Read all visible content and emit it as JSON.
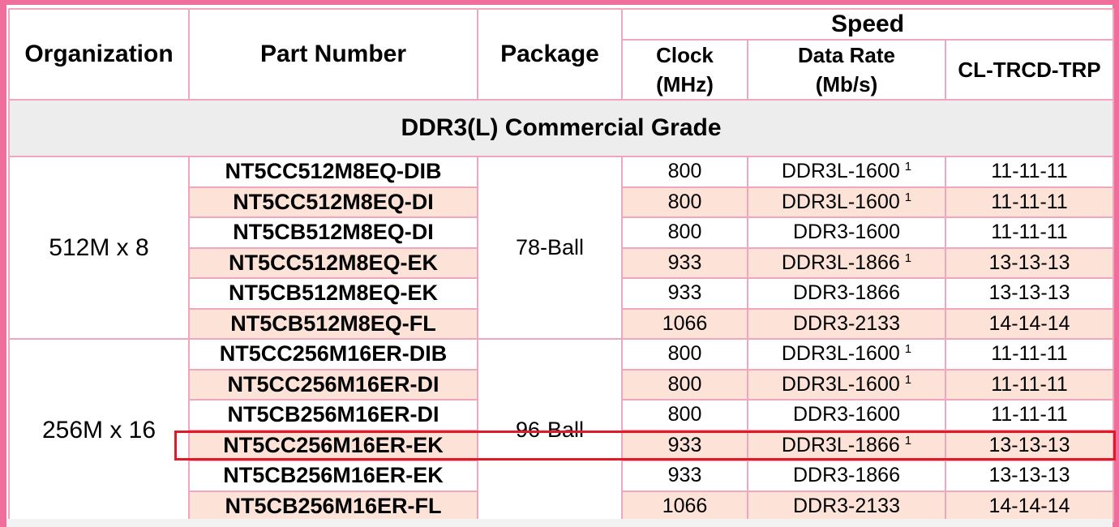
{
  "header": {
    "organization": "Organization",
    "part_number": "Part Number",
    "package": "Package",
    "speed": "Speed",
    "clock_line1": "Clock",
    "clock_line2": "(MHz)",
    "data_rate_line1": "Data Rate",
    "data_rate_line2": "(Mb/s)",
    "timing": "CL-TRCD-TRP"
  },
  "grade_title": "DDR3(L) Commercial Grade",
  "groups": [
    {
      "organization": "512M x 8",
      "package": "78-Ball",
      "rows": [
        {
          "part": "NT5CC512M8EQ-DIB",
          "clock": "800",
          "rate": "DDR3L-1600",
          "note": "1",
          "timing": "11-11-11"
        },
        {
          "part": "NT5CC512M8EQ-DI",
          "clock": "800",
          "rate": "DDR3L-1600",
          "note": "1",
          "timing": "11-11-11"
        },
        {
          "part": "NT5CB512M8EQ-DI",
          "clock": "800",
          "rate": "DDR3-1600",
          "note": "",
          "timing": "11-11-11"
        },
        {
          "part": "NT5CC512M8EQ-EK",
          "clock": "933",
          "rate": "DDR3L-1866",
          "note": "1",
          "timing": "13-13-13"
        },
        {
          "part": "NT5CB512M8EQ-EK",
          "clock": "933",
          "rate": "DDR3-1866",
          "note": "",
          "timing": "13-13-13"
        },
        {
          "part": "NT5CB512M8EQ-FL",
          "clock": "1066",
          "rate": "DDR3-2133",
          "note": "",
          "timing": "14-14-14"
        }
      ]
    },
    {
      "organization": "256M x 16",
      "package": "96-Ball",
      "rows": [
        {
          "part": "NT5CC256M16ER-DIB",
          "clock": "800",
          "rate": "DDR3L-1600",
          "note": "1",
          "timing": "11-11-11"
        },
        {
          "part": "NT5CC256M16ER-DI",
          "clock": "800",
          "rate": "DDR3L-1600",
          "note": "1",
          "timing": "11-11-11"
        },
        {
          "part": "NT5CB256M16ER-DI",
          "clock": "800",
          "rate": "DDR3-1600",
          "note": "",
          "timing": "11-11-11"
        },
        {
          "part": "NT5CC256M16ER-EK",
          "clock": "933",
          "rate": "DDR3L-1866",
          "note": "1",
          "timing": "13-13-13"
        },
        {
          "part": "NT5CB256M16ER-EK",
          "clock": "933",
          "rate": "DDR3-1866",
          "note": "",
          "timing": "13-13-13"
        },
        {
          "part": "NT5CB256M16ER-FL",
          "clock": "1066",
          "rate": "DDR3-2133",
          "note": "",
          "timing": "14-14-14"
        }
      ]
    }
  ],
  "colors": {
    "frame": "#f06e9b",
    "cell_border": "#f0a6bd",
    "alt_row": "#fde3d7",
    "grade_bg": "#ededed",
    "highlight": "#e3192a"
  }
}
